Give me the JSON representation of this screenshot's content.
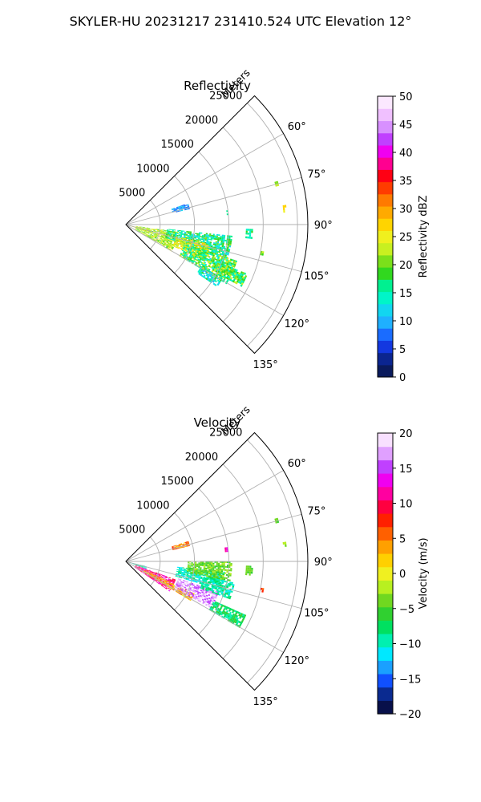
{
  "figure": {
    "suptitle": "SKYLER-HU  20231217  231410.524 UTC Elevation 12°"
  },
  "colors": {
    "reflectivity_cmap": [
      "#0a1a5c",
      "#0b2590",
      "#1338e0",
      "#1a6cff",
      "#1fb0ff",
      "#12d6f0",
      "#00f5c8",
      "#00f090",
      "#31d81f",
      "#7be01a",
      "#c8f020",
      "#f0f01e",
      "#ffd400",
      "#ffaa00",
      "#ff7a00",
      "#ff3c00",
      "#ff0014",
      "#ff0090",
      "#f000f0",
      "#c040ff",
      "#d890ff",
      "#f0c0ff",
      "#fbe8ff"
    ],
    "velocity_cmap": [
      "#08104a",
      "#0a2a90",
      "#1050ff",
      "#1aa0ff",
      "#00e8ff",
      "#00f0b0",
      "#00e060",
      "#30d030",
      "#70d820",
      "#b8f020",
      "#f0f020",
      "#ffd000",
      "#ffa000",
      "#ff6000",
      "#ff2000",
      "#ff0040",
      "#ff00a0",
      "#f000f0",
      "#c040ff",
      "#e0a0ff",
      "#f8e0ff"
    ]
  },
  "chart_data": [
    {
      "type": "heatmap",
      "subtype": "polar-sector-radar-ppi",
      "title": "Reflectivity",
      "radial_label": "Meters",
      "radial_ticks": [
        5000,
        10000,
        15000,
        20000,
        25000
      ],
      "radial_tick_labels": [
        "5000",
        "10000",
        "15000",
        "20000",
        "25000"
      ],
      "rlim": [
        0,
        26500
      ],
      "angle_ticks": [
        60,
        75,
        90,
        105,
        120,
        135
      ],
      "angle_tick_labels": [
        "60°",
        "75°",
        "90°",
        "105°",
        "120°",
        "135°"
      ],
      "theta_range_deg": [
        45,
        135
      ],
      "grid": true,
      "colorbar": {
        "label": "Reflectivity dBZ",
        "ticks": [
          0,
          5,
          10,
          15,
          20,
          25,
          30,
          35,
          40,
          45,
          50
        ],
        "tick_labels": [
          "0",
          "5",
          "10",
          "15",
          "20",
          "25",
          "30",
          "35",
          "40",
          "45",
          "50"
        ],
        "range": [
          0,
          50
        ]
      },
      "echo_regions": [
        {
          "az": [
            103,
            108
          ],
          "range_m": [
            300,
            3500
          ],
          "value": [
            22,
            30
          ]
        },
        {
          "az": [
            98,
            120
          ],
          "range_m": [
            1500,
            7500
          ],
          "value": [
            18,
            26
          ]
        },
        {
          "az": [
            96,
            108
          ],
          "range_m": [
            6000,
            15500
          ],
          "value": [
            12,
            20
          ]
        },
        {
          "az": [
            103,
            114
          ],
          "range_m": [
            7500,
            12500
          ],
          "value": [
            20,
            28
          ]
        },
        {
          "az": [
            108,
            120
          ],
          "range_m": [
            9000,
            17000
          ],
          "value": [
            13,
            24
          ]
        },
        {
          "az": [
            119,
            124
          ],
          "range_m": [
            12500,
            16000
          ],
          "value": [
            10,
            18
          ]
        },
        {
          "az": [
            112,
            118
          ],
          "range_m": [
            15000,
            19000
          ],
          "value": [
            14,
            24
          ]
        },
        {
          "az": [
            71,
            76
          ],
          "range_m": [
            7000,
            9500
          ],
          "value": [
            7,
            12
          ]
        },
        {
          "az": [
            92,
            96
          ],
          "range_m": [
            17500,
            18500
          ],
          "value": [
            14,
            18
          ]
        },
        {
          "az": [
            82,
            84
          ],
          "range_m": [
            14500,
            15000
          ],
          "value": [
            14,
            16
          ]
        },
        {
          "az": [
            74,
            75
          ],
          "range_m": [
            22500,
            23000
          ],
          "value": [
            20,
            24
          ]
        },
        {
          "az": [
            83,
            85
          ],
          "range_m": [
            23000,
            23500
          ],
          "value": [
            25,
            28
          ]
        },
        {
          "az": [
            101,
            102
          ],
          "range_m": [
            20000,
            20500
          ],
          "value": [
            18,
            22
          ]
        }
      ]
    },
    {
      "type": "heatmap",
      "subtype": "polar-sector-radar-ppi",
      "title": "Velocity",
      "radial_label": "Meters",
      "radial_ticks": [
        5000,
        10000,
        15000,
        20000,
        25000
      ],
      "radial_tick_labels": [
        "5000",
        "10000",
        "15000",
        "20000",
        "25000"
      ],
      "rlim": [
        0,
        26500
      ],
      "angle_ticks": [
        60,
        75,
        90,
        105,
        120,
        135
      ],
      "angle_tick_labels": [
        "60°",
        "75°",
        "90°",
        "105°",
        "120°",
        "135°"
      ],
      "theta_range_deg": [
        45,
        135
      ],
      "grid": true,
      "colorbar": {
        "label": "Velocity (m/s)",
        "ticks": [
          -20,
          -15,
          -10,
          -5,
          0,
          5,
          10,
          15,
          20
        ],
        "tick_labels": [
          "−20",
          "−15",
          "−10",
          "−5",
          "0",
          "5",
          "10",
          "15",
          "20"
        ],
        "range": [
          -20,
          20
        ]
      },
      "echo_regions": [
        {
          "az": [
            110,
            124
          ],
          "range_m": [
            1500,
            7500
          ],
          "value": [
            8,
            14
          ]
        },
        {
          "az": [
            115,
            121
          ],
          "range_m": [
            3000,
            11000
          ],
          "value": [
            0,
            6
          ]
        },
        {
          "az": [
            108,
            118
          ],
          "range_m": [
            8000,
            14000
          ],
          "value": [
            15,
            19
          ]
        },
        {
          "az": [
            96,
            106
          ],
          "range_m": [
            7500,
            14500
          ],
          "value": [
            -12,
            -8
          ]
        },
        {
          "az": [
            90,
            100
          ],
          "range_m": [
            9000,
            15500
          ],
          "value": [
            -6,
            -2
          ]
        },
        {
          "az": [
            101,
            110
          ],
          "range_m": [
            11500,
            16000
          ],
          "value": [
            -11,
            -7
          ]
        },
        {
          "az": [
            114,
            120
          ],
          "range_m": [
            14000,
            19000
          ],
          "value": [
            -10,
            -5
          ]
        },
        {
          "az": [
            103,
            110
          ],
          "range_m": [
            300,
            3000
          ],
          "value": [
            -12,
            -6
          ]
        },
        {
          "az": [
            72,
            76
          ],
          "range_m": [
            7000,
            9500
          ],
          "value": [
            2,
            8
          ]
        },
        {
          "az": [
            92,
            96
          ],
          "range_m": [
            17500,
            18500
          ],
          "value": [
            -6,
            -3
          ]
        },
        {
          "az": [
            82,
            84
          ],
          "range_m": [
            14500,
            15000
          ],
          "value": [
            11,
            14
          ]
        },
        {
          "az": [
            74,
            75
          ],
          "range_m": [
            22500,
            23000
          ],
          "value": [
            -6,
            -4
          ]
        },
        {
          "az": [
            83,
            85
          ],
          "range_m": [
            23000,
            23500
          ],
          "value": [
            -4,
            -2
          ]
        },
        {
          "az": [
            101,
            102
          ],
          "range_m": [
            20000,
            20500
          ],
          "value": [
            4,
            8
          ]
        }
      ]
    }
  ]
}
